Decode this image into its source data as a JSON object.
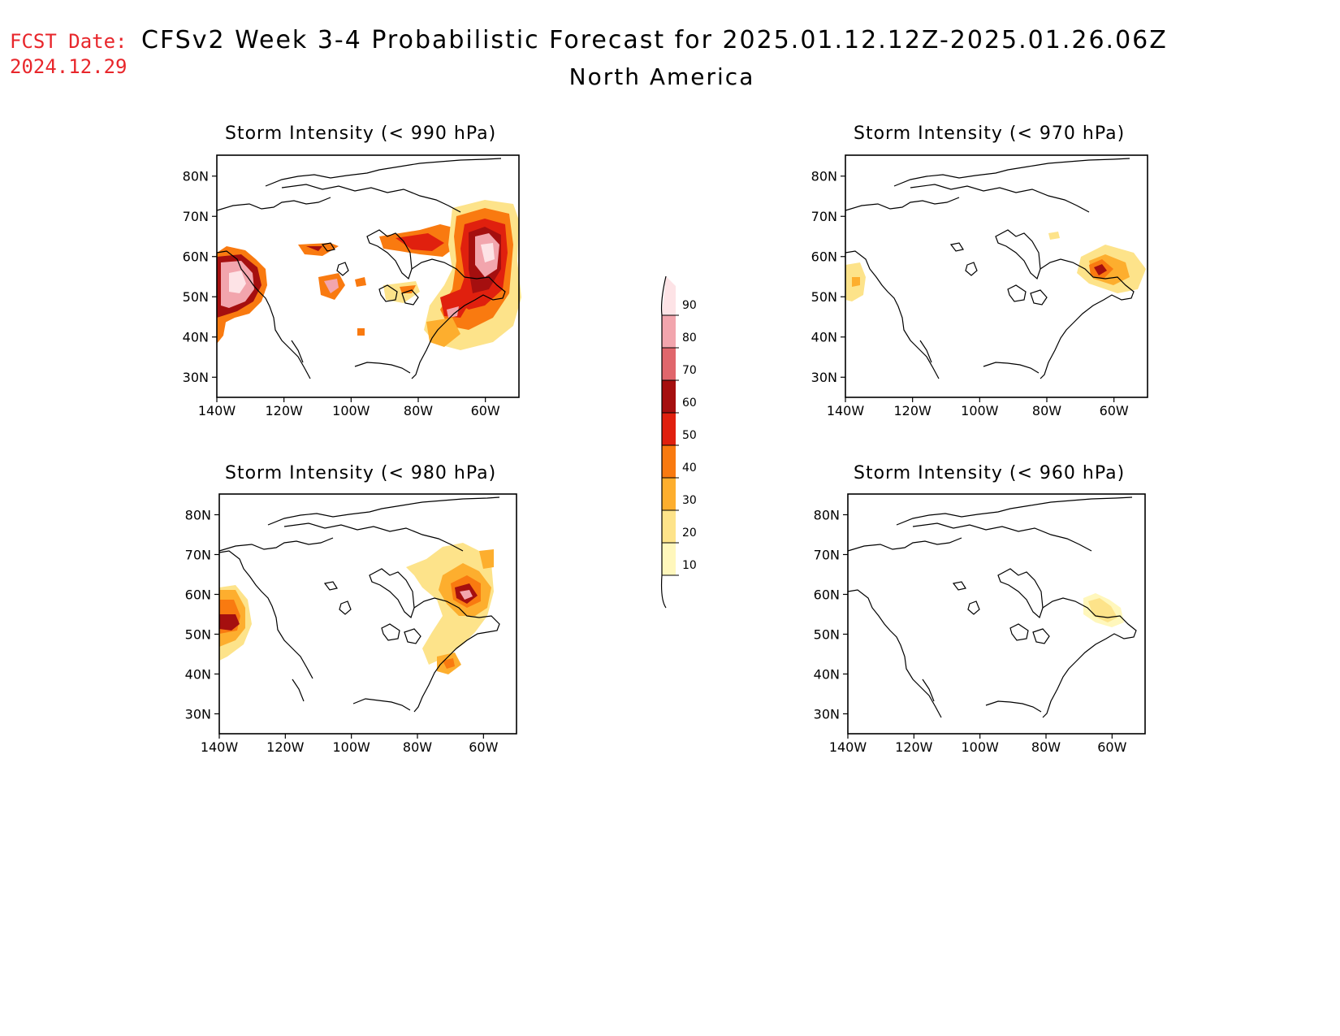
{
  "header": {
    "fcst_label": "FCST Date:",
    "fcst_date": "2024.12.29",
    "title": "CFSv2 Week 3-4 Probabilistic Forecast for 2025.01.12.12Z-2025.01.26.06Z",
    "subtitle": "North America"
  },
  "colors": {
    "fcst_text": "#e8262b",
    "scale": [
      "#fff7bc",
      "#fde38a",
      "#fdae2e",
      "#f97a10",
      "#e0200e",
      "#a50f0f",
      "#e0666c",
      "#f2a5ad",
      "#fde3e6"
    ]
  },
  "colorbar": {
    "labels": [
      "10",
      "20",
      "30",
      "40",
      "50",
      "60",
      "70",
      "80",
      "90"
    ]
  },
  "axes": {
    "lat_labels": [
      "80N",
      "70N",
      "60N",
      "50N",
      "40N",
      "30N"
    ],
    "lon_labels": [
      "140W",
      "120W",
      "100W",
      "80W",
      "60W"
    ]
  },
  "panels": [
    {
      "id": "p990",
      "title": "Storm Intensity (< 990 hPa)"
    },
    {
      "id": "p970",
      "title": "Storm Intensity (< 970 hPa)"
    },
    {
      "id": "p980",
      "title": "Storm Intensity (< 980 hPa)"
    },
    {
      "id": "p960",
      "title": "Storm Intensity (< 960 hPa)"
    }
  ]
}
